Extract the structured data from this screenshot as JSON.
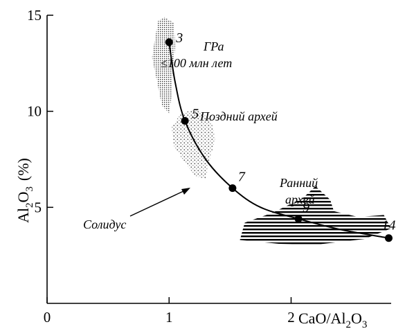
{
  "chart_data": {
    "type": "scatter",
    "title": "",
    "xlabel": {
      "base": "CaO/Al",
      "sub1": "2",
      "mid": "O",
      "sub2": "3"
    },
    "ylabel": {
      "base": "Al",
      "sub1": "2",
      "mid": "O",
      "sub2": "3",
      "unit": "(%)"
    },
    "xlim": [
      0,
      2.82
    ],
    "ylim": [
      0,
      15
    ],
    "xticks": [
      0,
      1,
      2
    ],
    "yticks": [
      5,
      10,
      15
    ],
    "grid": false,
    "points": [
      {
        "label": "3",
        "x": 1.0,
        "y": 13.6
      },
      {
        "label": "5",
        "x": 1.13,
        "y": 9.5
      },
      {
        "label": "7",
        "x": 1.52,
        "y": 6.0
      },
      {
        "label": "9",
        "x": 2.06,
        "y": 4.4
      },
      {
        "label": "14",
        "x": 2.8,
        "y": 3.4
      }
    ],
    "curve": {
      "x": [
        1.0,
        1.05,
        1.13,
        1.3,
        1.52,
        1.75,
        2.06,
        2.4,
        2.8
      ],
      "y": [
        13.6,
        11.5,
        9.5,
        7.5,
        6.0,
        5.0,
        4.4,
        3.85,
        3.4
      ]
    },
    "regions": [
      {
        "name": "ГРа",
        "note": "≤100 млн лет",
        "pattern": "fine-dots",
        "outline": [
          [
            0.96,
            14.9
          ],
          [
            1.04,
            14.6
          ],
          [
            1.05,
            13.4
          ],
          [
            1.03,
            12.0
          ],
          [
            1.02,
            10.8
          ],
          [
            1.0,
            9.9
          ],
          [
            0.94,
            10.3
          ],
          [
            0.9,
            11.6
          ],
          [
            0.86,
            12.8
          ],
          [
            0.88,
            13.6
          ],
          [
            0.91,
            14.7
          ]
        ]
      },
      {
        "name": "Поздний архей",
        "pattern": "coarse-dots",
        "outline": [
          [
            1.02,
            9.2
          ],
          [
            1.1,
            9.9
          ],
          [
            1.22,
            10.1
          ],
          [
            1.34,
            9.6
          ],
          [
            1.38,
            8.6
          ],
          [
            1.33,
            7.4
          ],
          [
            1.3,
            6.5
          ],
          [
            1.22,
            6.6
          ],
          [
            1.12,
            7.4
          ],
          [
            1.04,
            8.2
          ]
        ]
      },
      {
        "name": "Ранний архей",
        "pattern": "hatch",
        "outline": [
          [
            1.58,
            3.3
          ],
          [
            1.62,
            4.2
          ],
          [
            1.84,
            4.7
          ],
          [
            2.1,
            5.5
          ],
          [
            2.2,
            6.1
          ],
          [
            2.32,
            5.4
          ],
          [
            2.35,
            4.8
          ],
          [
            2.55,
            4.5
          ],
          [
            2.76,
            4.6
          ],
          [
            2.82,
            3.9
          ],
          [
            2.6,
            3.35
          ],
          [
            2.2,
            3.05
          ],
          [
            1.9,
            3.1
          ]
        ]
      }
    ],
    "annotations": {
      "region_gra_line1": "ГРа",
      "region_gra_line2": "≤100 млн лет",
      "region_late_archean": "Поздний  архей",
      "region_early_archean_line1": "Ранний",
      "region_early_archean_line2": "архей",
      "solidus": "Солидус"
    }
  }
}
